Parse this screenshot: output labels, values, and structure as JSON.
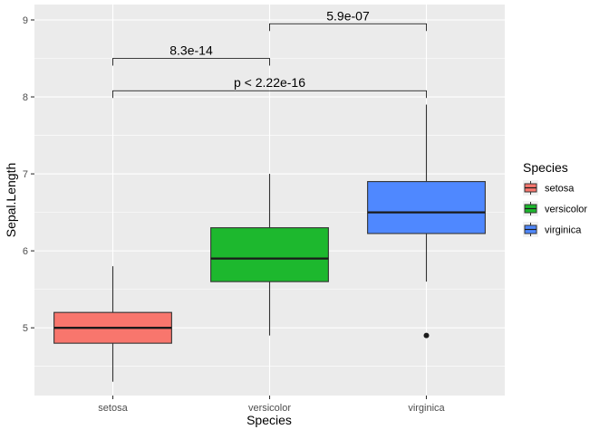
{
  "chart_data": {
    "type": "boxplot",
    "title": "",
    "xlabel": "Species",
    "ylabel": "Sepal.Length",
    "categories": [
      "setosa",
      "versicolor",
      "virginica"
    ],
    "ylim": [
      4.12,
      9.2
    ],
    "yticks": [
      5,
      6,
      7,
      8,
      9
    ],
    "y_minor_ticks": [
      4.5,
      5.5,
      6.5,
      7.5,
      8.5
    ],
    "series": [
      {
        "name": "setosa",
        "min": 4.3,
        "q1": 4.8,
        "median": 5.0,
        "q3": 5.2,
        "max": 5.8,
        "outliers": [],
        "color": "#F8766D"
      },
      {
        "name": "versicolor",
        "min": 4.9,
        "q1": 5.6,
        "median": 5.9,
        "q3": 6.3,
        "max": 7.0,
        "outliers": [],
        "color": "#1DB82E"
      },
      {
        "name": "virginica",
        "min": 5.6,
        "q1": 6.225,
        "median": 6.5,
        "q3": 6.9,
        "max": 7.9,
        "outliers": [
          4.9
        ],
        "color": "#4F88FF"
      }
    ],
    "comparisons": [
      {
        "group1": "setosa",
        "group2": "versicolor",
        "label": "8.3e-14",
        "y": 8.5
      },
      {
        "group1": "versicolor",
        "group2": "virginica",
        "label": "5.9e-07",
        "y": 8.95
      },
      {
        "group1": "setosa",
        "group2": "virginica",
        "label": "p < 2.22e-16",
        "y": 8.08
      }
    ],
    "legend": {
      "title": "Species",
      "position": "right"
    },
    "grid": true,
    "colors": {
      "panel": "#EBEBEB",
      "grid": "#FFFFFF",
      "box_outline": "#333333",
      "median": "#1A1A1A"
    }
  }
}
